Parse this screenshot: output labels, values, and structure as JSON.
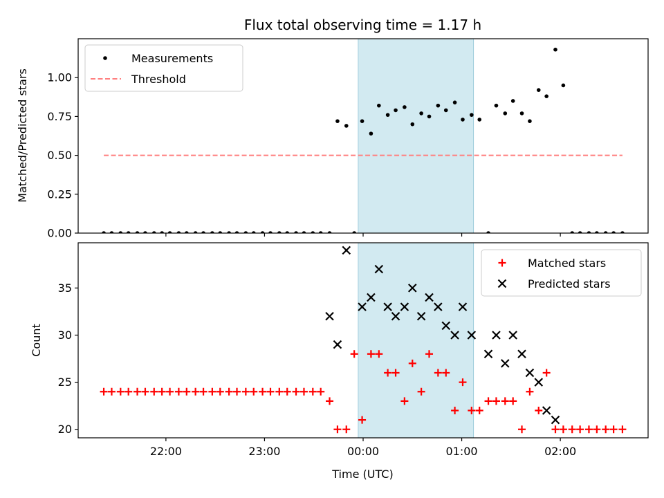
{
  "chart_data": [
    {
      "type": "scatter",
      "title": "Flux total observing time = 1.17 h",
      "xlabel": "",
      "ylabel": "Matched/Predicted stars",
      "x_unit": "hours relative to 00:00 UTC",
      "xlim": [
        -2.89,
        2.89
      ],
      "ylim": [
        0,
        1.25
      ],
      "yticks": [
        0.0,
        0.25,
        0.5,
        0.75,
        1.0
      ],
      "ytick_labels": [
        "0.00",
        "0.25",
        "0.50",
        "0.75",
        "1.00"
      ],
      "shaded_interval": [
        -0.05,
        1.12
      ],
      "shade_color": "#add8e6",
      "legend_placement": "upper left",
      "series": [
        {
          "name": "Measurements",
          "marker": "dot",
          "color": "#000000",
          "x": [
            -2.63,
            -2.55,
            -2.46,
            -2.38,
            -2.29,
            -2.21,
            -2.12,
            -2.04,
            -1.96,
            -1.87,
            -1.79,
            -1.7,
            -1.62,
            -1.53,
            -1.45,
            -1.36,
            -1.28,
            -1.19,
            -1.11,
            -1.02,
            -0.94,
            -0.85,
            -0.77,
            -0.68,
            -0.6,
            -0.51,
            -0.43,
            -0.34,
            -0.26,
            -0.17,
            -0.09,
            -0.01,
            0.08,
            0.16,
            0.25,
            0.33,
            0.42,
            0.5,
            0.59,
            0.67,
            0.76,
            0.84,
            0.93,
            1.01,
            1.1,
            1.18,
            1.27,
            1.35,
            1.44,
            1.52,
            1.61,
            1.69,
            1.78,
            1.86,
            1.95,
            2.03,
            2.12,
            2.2,
            2.29,
            2.37,
            2.46,
            2.54,
            2.63
          ],
          "y": [
            0,
            0,
            0,
            0,
            0,
            0,
            0,
            0,
            0,
            0,
            0,
            0,
            0,
            0,
            0,
            0,
            0,
            0,
            0,
            0,
            0,
            0,
            0,
            0,
            0,
            0,
            0,
            0,
            0.72,
            0.69,
            0,
            0.72,
            0.64,
            0.82,
            0.76,
            0.79,
            0.81,
            0.7,
            0.77,
            0.75,
            0.82,
            0.79,
            0.84,
            0.73,
            0.76,
            0.73,
            0,
            0.82,
            0.77,
            0.85,
            0.77,
            0.72,
            0.92,
            0.88,
            1.18,
            0.95,
            0,
            0,
            0,
            0,
            0,
            0,
            0
          ],
          "x_note": ""
        },
        {
          "name": "Threshold",
          "marker": "dashed-line",
          "color": "#ff7f7f",
          "x": [
            -2.63,
            2.63
          ],
          "y": [
            0.5,
            0.5
          ]
        }
      ]
    },
    {
      "type": "scatter",
      "title": "",
      "xlabel": "Time (UTC)",
      "ylabel": "Count",
      "x_unit": "hours relative to 00:00 UTC",
      "xlim": [
        -2.89,
        2.89
      ],
      "ylim": [
        19.1,
        39.8
      ],
      "yticks": [
        20,
        25,
        30,
        35
      ],
      "ytick_labels": [
        "20",
        "25",
        "30",
        "35"
      ],
      "xticks": [
        -2,
        -1,
        0,
        1,
        2
      ],
      "xtick_labels": [
        "22:00",
        "23:00",
        "00:00",
        "01:00",
        "02:00"
      ],
      "shaded_interval": [
        -0.05,
        1.12
      ],
      "shade_color": "#add8e6",
      "legend_placement": "upper right",
      "series": [
        {
          "name": "Matched stars",
          "marker": "plus",
          "color": "#ff0000",
          "x": [
            -2.63,
            -2.55,
            -2.46,
            -2.38,
            -2.29,
            -2.21,
            -2.12,
            -2.04,
            -1.96,
            -1.87,
            -1.79,
            -1.7,
            -1.62,
            -1.53,
            -1.45,
            -1.36,
            -1.28,
            -1.19,
            -1.11,
            -1.02,
            -0.94,
            -0.85,
            -0.77,
            -0.68,
            -0.6,
            -0.51,
            -0.43,
            -0.34,
            -0.26,
            -0.17,
            -0.09,
            -0.01,
            0.08,
            0.16,
            0.25,
            0.33,
            0.42,
            0.5,
            0.59,
            0.67,
            0.76,
            0.84,
            0.93,
            1.01,
            1.1,
            1.18,
            1.27,
            1.35,
            1.44,
            1.52,
            1.61,
            1.69,
            1.78,
            1.86,
            1.95,
            2.03,
            2.12,
            2.2,
            2.29,
            2.37,
            2.46,
            2.54,
            2.63
          ],
          "y": [
            24,
            24,
            24,
            24,
            24,
            24,
            24,
            24,
            24,
            24,
            24,
            24,
            24,
            24,
            24,
            24,
            24,
            24,
            24,
            24,
            24,
            24,
            24,
            24,
            24,
            24,
            24,
            23,
            20,
            20,
            28,
            21,
            28,
            28,
            26,
            26,
            23,
            27,
            24,
            28,
            26,
            26,
            22,
            25,
            22,
            22,
            23,
            23,
            23,
            23,
            20,
            24,
            22,
            26,
            20,
            20,
            20,
            20,
            20,
            20,
            20,
            20,
            20
          ]
        },
        {
          "name": "Predicted stars",
          "marker": "x",
          "color": "#000000",
          "x": [
            -0.34,
            -0.26,
            -0.17,
            -0.01,
            0.08,
            0.16,
            0.25,
            0.33,
            0.42,
            0.5,
            0.59,
            0.67,
            0.76,
            0.84,
            0.93,
            1.01,
            1.1,
            1.27,
            1.35,
            1.44,
            1.52,
            1.61,
            1.69,
            1.78,
            1.86,
            1.95
          ],
          "y": [
            32,
            29,
            39,
            33,
            34,
            37,
            33,
            32,
            33,
            35,
            32,
            34,
            33,
            31,
            30,
            33,
            30,
            28,
            30,
            27,
            30,
            28,
            26,
            25,
            22,
            21
          ]
        }
      ]
    }
  ]
}
